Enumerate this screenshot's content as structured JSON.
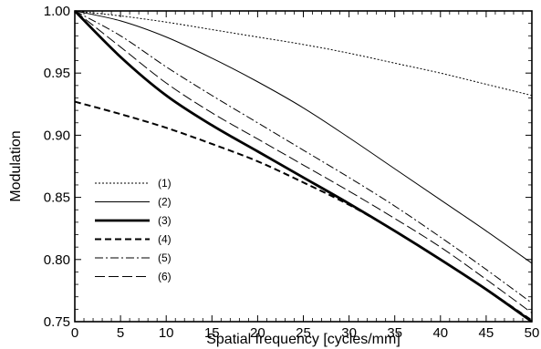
{
  "chart_data": {
    "type": "line",
    "title": "",
    "xlabel": "Spatial frequency  [cycles/mm]",
    "ylabel": "Modulation",
    "xlim": [
      0,
      50
    ],
    "ylim": [
      0.75,
      1.0
    ],
    "xticks": [
      0,
      5,
      10,
      15,
      20,
      25,
      30,
      35,
      40,
      45,
      50
    ],
    "xtick_labels": [
      "0",
      "5",
      "10",
      "15",
      "20",
      "25",
      "30",
      "35",
      "40",
      "45",
      "50"
    ],
    "yticks": [
      0.75,
      0.8,
      0.85,
      0.9,
      0.95,
      1.0
    ],
    "ytick_labels": [
      "0.75",
      "0.80",
      "0.85",
      "0.90",
      "0.95",
      "1.00"
    ],
    "grid": false,
    "legend_position": "bottom-left",
    "series": [
      {
        "name": "(1)",
        "style": "dotted",
        "x": [
          0,
          5,
          10,
          15,
          20,
          25,
          30,
          35,
          40,
          45,
          50
        ],
        "y": [
          1.0,
          0.996,
          0.991,
          0.985,
          0.979,
          0.973,
          0.966,
          0.958,
          0.95,
          0.941,
          0.932
        ]
      },
      {
        "name": "(2)",
        "style": "thin-solid",
        "x": [
          0,
          5,
          10,
          15,
          20,
          25,
          30,
          35,
          40,
          45,
          50
        ],
        "y": [
          1.0,
          0.992,
          0.979,
          0.962,
          0.943,
          0.922,
          0.898,
          0.873,
          0.848,
          0.823,
          0.797
        ]
      },
      {
        "name": "(3)",
        "style": "thick-solid",
        "x": [
          0,
          5,
          10,
          15,
          20,
          25,
          30,
          35,
          40,
          45,
          50
        ],
        "y": [
          1.0,
          0.963,
          0.932,
          0.908,
          0.887,
          0.866,
          0.845,
          0.823,
          0.8,
          0.776,
          0.75
        ]
      },
      {
        "name": "(4)",
        "style": "thick-dashed",
        "x": [
          0,
          5,
          10,
          15,
          20,
          25,
          30,
          35,
          40,
          45,
          50
        ],
        "y": [
          0.927,
          0.917,
          0.906,
          0.893,
          0.879,
          0.862,
          0.844,
          0.823,
          0.8,
          0.776,
          0.751
        ]
      },
      {
        "name": "(5)",
        "style": "dash-dot",
        "x": [
          0,
          5,
          10,
          15,
          20,
          25,
          30,
          35,
          40,
          45,
          50
        ],
        "y": [
          1.0,
          0.98,
          0.955,
          0.932,
          0.91,
          0.888,
          0.866,
          0.843,
          0.818,
          0.792,
          0.765
        ]
      },
      {
        "name": "(6)",
        "style": "long-dash",
        "x": [
          0,
          5,
          10,
          15,
          20,
          25,
          30,
          35,
          40,
          45,
          50
        ],
        "y": [
          1.0,
          0.971,
          0.942,
          0.918,
          0.897,
          0.876,
          0.855,
          0.833,
          0.81,
          0.784,
          0.757
        ]
      }
    ]
  }
}
